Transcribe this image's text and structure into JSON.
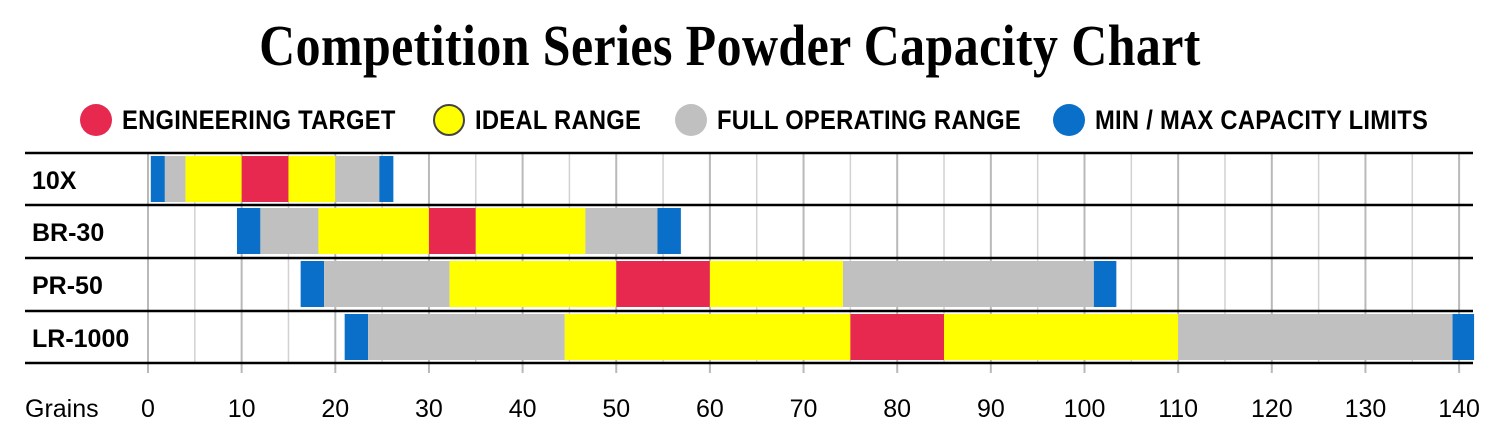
{
  "chart_data": {
    "type": "bar",
    "title": "Competition Series Powder Capacity Chart",
    "xlabel": "Grains",
    "ylabel": "",
    "xlim": [
      0,
      142
    ],
    "x_ticks": [
      0,
      10,
      20,
      30,
      40,
      50,
      60,
      70,
      80,
      90,
      100,
      110,
      120,
      130,
      140
    ],
    "grid": true,
    "legend_position": "top",
    "legend": [
      {
        "label": "ENGINEERING TARGET",
        "color": "#e8294f"
      },
      {
        "label": "IDEAL RANGE",
        "color": "#ffff00"
      },
      {
        "label": "FULL OPERATING RANGE",
        "color": "#c0c0c0"
      },
      {
        "label": "MIN / MAX CAPACITY LIMITS",
        "color": "#0a6fc8"
      }
    ],
    "categories": [
      "10X",
      "BR-30",
      "PR-50",
      "LR-1000"
    ],
    "series": [
      {
        "category": "10X",
        "segments": [
          {
            "kind": "limit",
            "start": 0.3,
            "end": 1.8
          },
          {
            "kind": "full",
            "start": 1.8,
            "end": 4.0
          },
          {
            "kind": "ideal",
            "start": 4.0,
            "end": 10.0
          },
          {
            "kind": "target",
            "start": 10.0,
            "end": 15.0
          },
          {
            "kind": "ideal",
            "start": 15.0,
            "end": 20.0
          },
          {
            "kind": "full",
            "start": 20.0,
            "end": 24.7
          },
          {
            "kind": "limit",
            "start": 24.7,
            "end": 26.2
          }
        ]
      },
      {
        "category": "BR-30",
        "segments": [
          {
            "kind": "limit",
            "start": 9.5,
            "end": 12.0
          },
          {
            "kind": "full",
            "start": 12.0,
            "end": 18.2
          },
          {
            "kind": "ideal",
            "start": 18.2,
            "end": 30.0
          },
          {
            "kind": "target",
            "start": 30.0,
            "end": 35.0
          },
          {
            "kind": "ideal",
            "start": 35.0,
            "end": 46.7
          },
          {
            "kind": "full",
            "start": 46.7,
            "end": 54.4
          },
          {
            "kind": "limit",
            "start": 54.4,
            "end": 56.9
          }
        ]
      },
      {
        "category": "PR-50",
        "segments": [
          {
            "kind": "limit",
            "start": 16.3,
            "end": 18.8
          },
          {
            "kind": "full",
            "start": 18.8,
            "end": 32.2
          },
          {
            "kind": "ideal",
            "start": 32.2,
            "end": 50.0
          },
          {
            "kind": "target",
            "start": 50.0,
            "end": 60.0
          },
          {
            "kind": "ideal",
            "start": 60.0,
            "end": 74.2
          },
          {
            "kind": "full",
            "start": 74.2,
            "end": 101.0
          },
          {
            "kind": "limit",
            "start": 101.0,
            "end": 103.4
          }
        ]
      },
      {
        "category": "LR-1000",
        "segments": [
          {
            "kind": "limit",
            "start": 21.0,
            "end": 23.5
          },
          {
            "kind": "full",
            "start": 23.5,
            "end": 44.5
          },
          {
            "kind": "ideal",
            "start": 44.5,
            "end": 75.0
          },
          {
            "kind": "target",
            "start": 75.0,
            "end": 85.0
          },
          {
            "kind": "ideal",
            "start": 85.0,
            "end": 110.0
          },
          {
            "kind": "full",
            "start": 110.0,
            "end": 139.3
          },
          {
            "kind": "limit",
            "start": 139.3,
            "end": 141.6
          }
        ]
      }
    ]
  }
}
